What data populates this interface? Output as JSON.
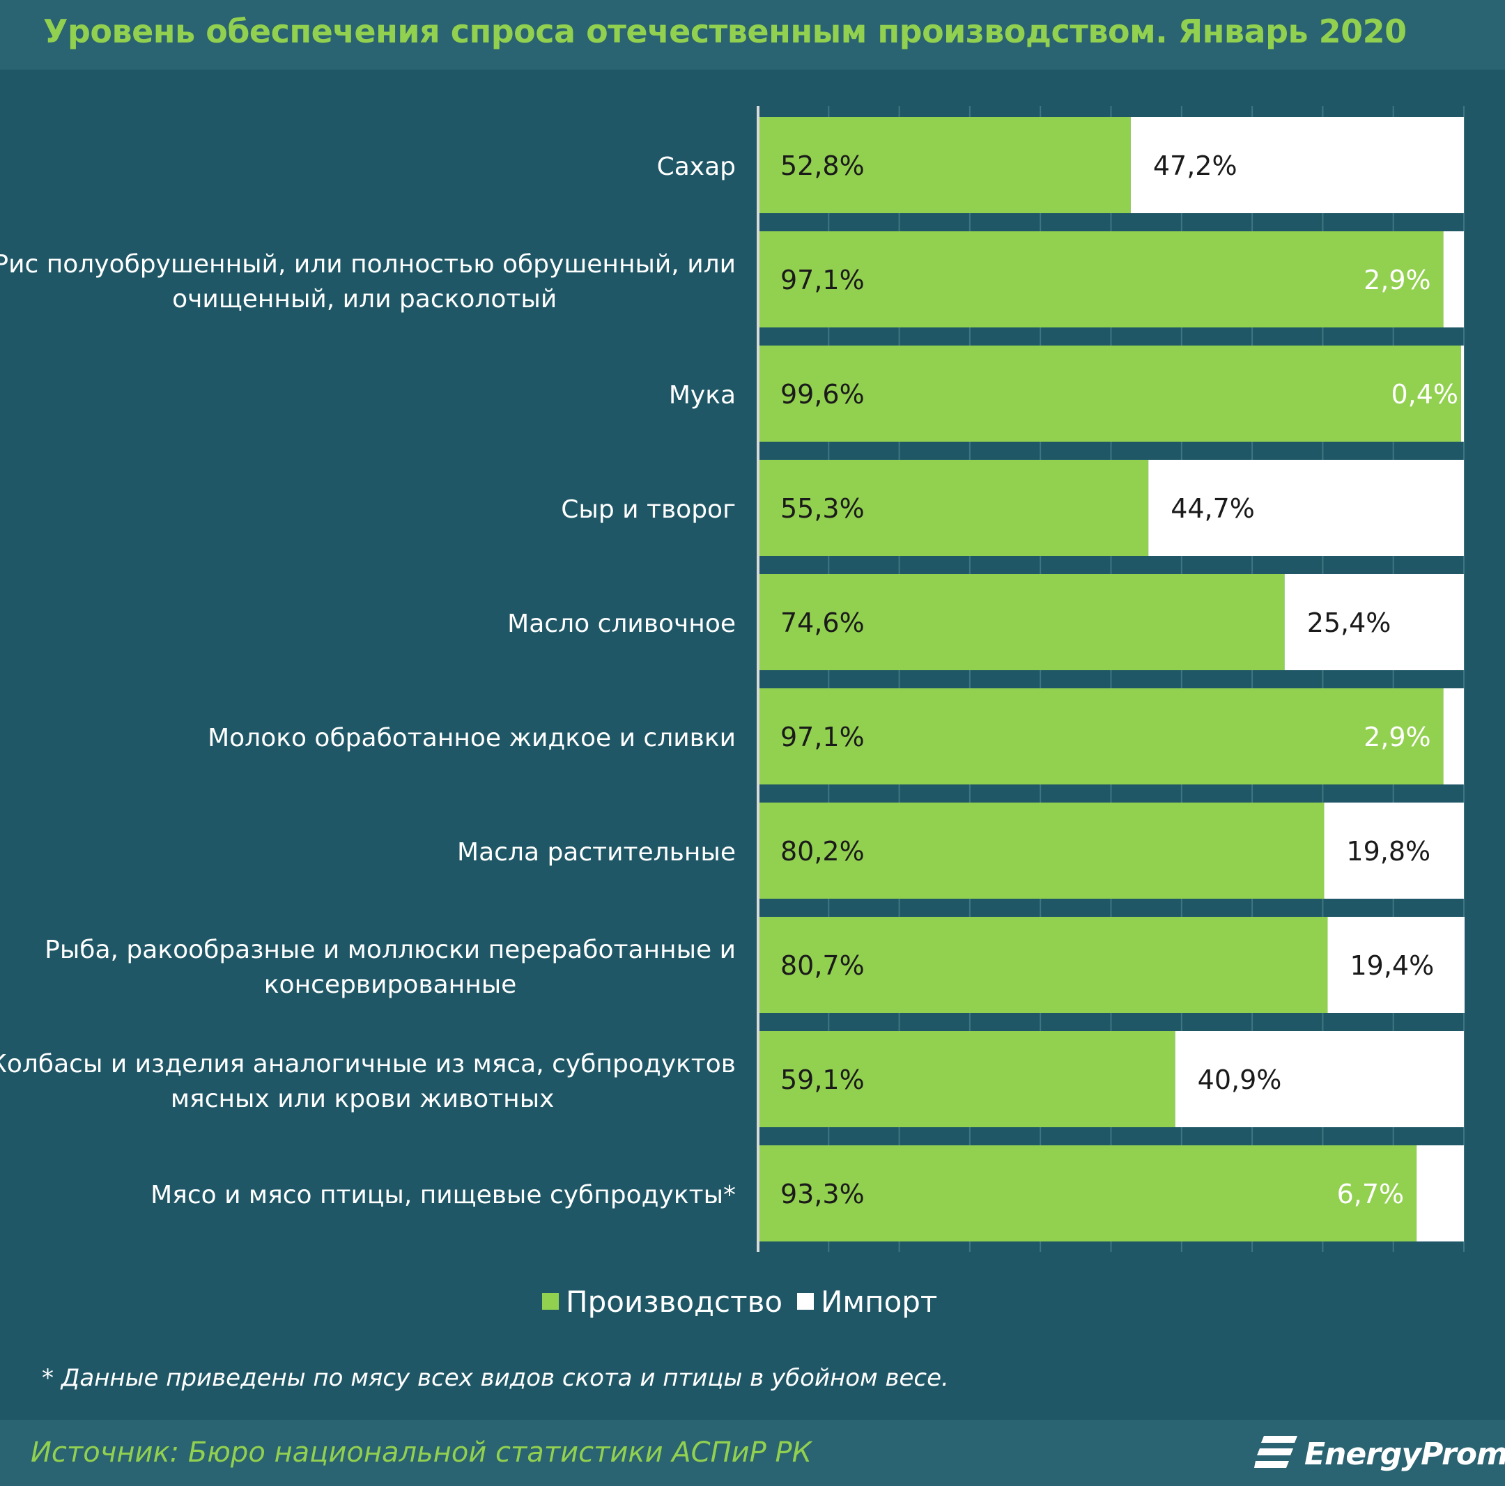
{
  "title": "Уровень обеспечения спроса отечественным производством. Январь 2020",
  "chart_data": {
    "type": "bar",
    "orientation": "horizontal",
    "stacked": true,
    "categories": [
      [
        "Сахар"
      ],
      [
        "Рис полуобрушенный, или полностью обрушенный, или",
        "очищенный, или расколотый"
      ],
      [
        "Мука"
      ],
      [
        "Сыр и творог"
      ],
      [
        "Масло сливочное"
      ],
      [
        "Молоко обработанное жидкое и сливки"
      ],
      [
        "Масла растительные"
      ],
      [
        "Рыба, ракообразные и моллюски переработанные и",
        "консервированные"
      ],
      [
        "Колбасы и изделия аналогичные из мяса, субпродуктов",
        "мясных или крови животных"
      ],
      [
        "Мясо и мясо птицы, пищевые субпродукты*"
      ]
    ],
    "series": [
      {
        "name": "Производство",
        "color": "#92d050",
        "values": [
          52.8,
          97.1,
          99.6,
          55.3,
          74.6,
          97.1,
          80.2,
          80.7,
          59.1,
          93.3
        ],
        "labels": [
          "52,8%",
          "97,1%",
          "99,6%",
          "55,3%",
          "74,6%",
          "97,1%",
          "80,2%",
          "80,7%",
          "59,1%",
          "93,3%"
        ]
      },
      {
        "name": "Импорт",
        "color": "#ffffff",
        "values": [
          47.2,
          2.9,
          0.4,
          44.7,
          25.4,
          2.9,
          19.8,
          19.4,
          40.9,
          6.7
        ],
        "labels": [
          "47,2%",
          "2,9%",
          "0,4%",
          "44,7%",
          "25,4%",
          "2,9%",
          "19,8%",
          "19,4%",
          "40,9%",
          "6,7%"
        ]
      }
    ],
    "xlim": [
      0,
      100
    ],
    "grid": true,
    "legend_position": "bottom-center"
  },
  "footnote": "* Данные приведены по мясу всех видов скота и птицы в убойном весе.",
  "source": "Источник: Бюро национальной  статистики АСПиР РК",
  "logo_text": "EnergyProm",
  "colors": {
    "background": "#1f5766",
    "band": "#2a6371",
    "accent": "#92d050",
    "text": "#ffffff",
    "label_dark": "#1a1a1a"
  }
}
